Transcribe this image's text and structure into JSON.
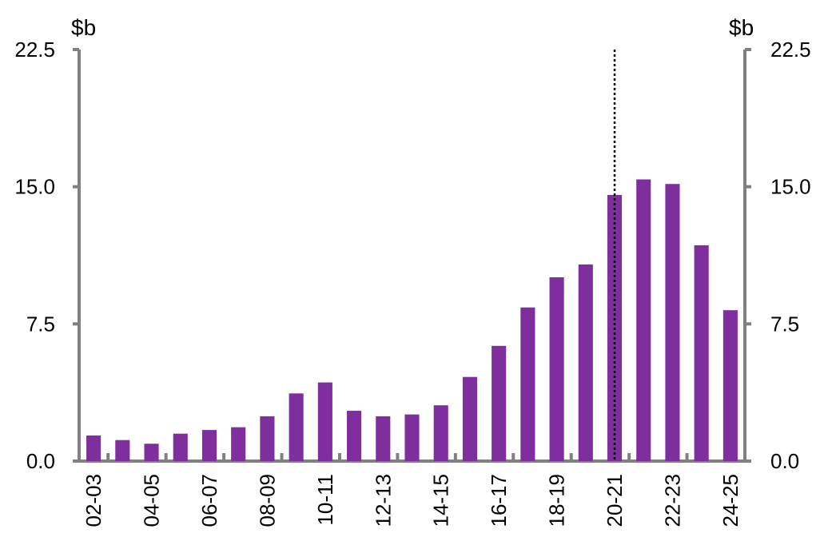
{
  "chart_data": {
    "type": "bar",
    "categories": [
      "02-03",
      "03-04",
      "04-05",
      "05-06",
      "06-07",
      "07-08",
      "08-09",
      "09-10",
      "10-11",
      "11-12",
      "12-13",
      "13-14",
      "14-15",
      "15-16",
      "16-17",
      "17-18",
      "18-19",
      "19-20",
      "20-21",
      "21-22",
      "22-23",
      "23-24",
      "24-25"
    ],
    "x_tick_labels_shown": [
      "02-03",
      "04-05",
      "06-07",
      "08-09",
      "10-11",
      "12-13",
      "14-15",
      "16-17",
      "18-19",
      "20-21",
      "22-23",
      "24-25"
    ],
    "series": [
      {
        "values": [
          1.4,
          1.15,
          0.95,
          1.5,
          1.7,
          1.85,
          2.45,
          3.7,
          4.3,
          2.75,
          2.45,
          2.55,
          3.05,
          4.6,
          6.3,
          8.4,
          10.05,
          10.75,
          14.55,
          15.4,
          15.15,
          11.8,
          8.25
        ]
      }
    ],
    "y_ticks": [
      "0.0",
      "7.5",
      "15.0",
      "22.5"
    ],
    "ylim": [
      0,
      22.5
    ],
    "y_unit_left": "$b",
    "y_unit_right": "$b",
    "marker_line_after": "20-21",
    "colors": {
      "bar": "#7f2e9e",
      "axis": "#808080",
      "marker_line": "#000000"
    },
    "title": "",
    "xlabel": "",
    "ylabel": ""
  }
}
